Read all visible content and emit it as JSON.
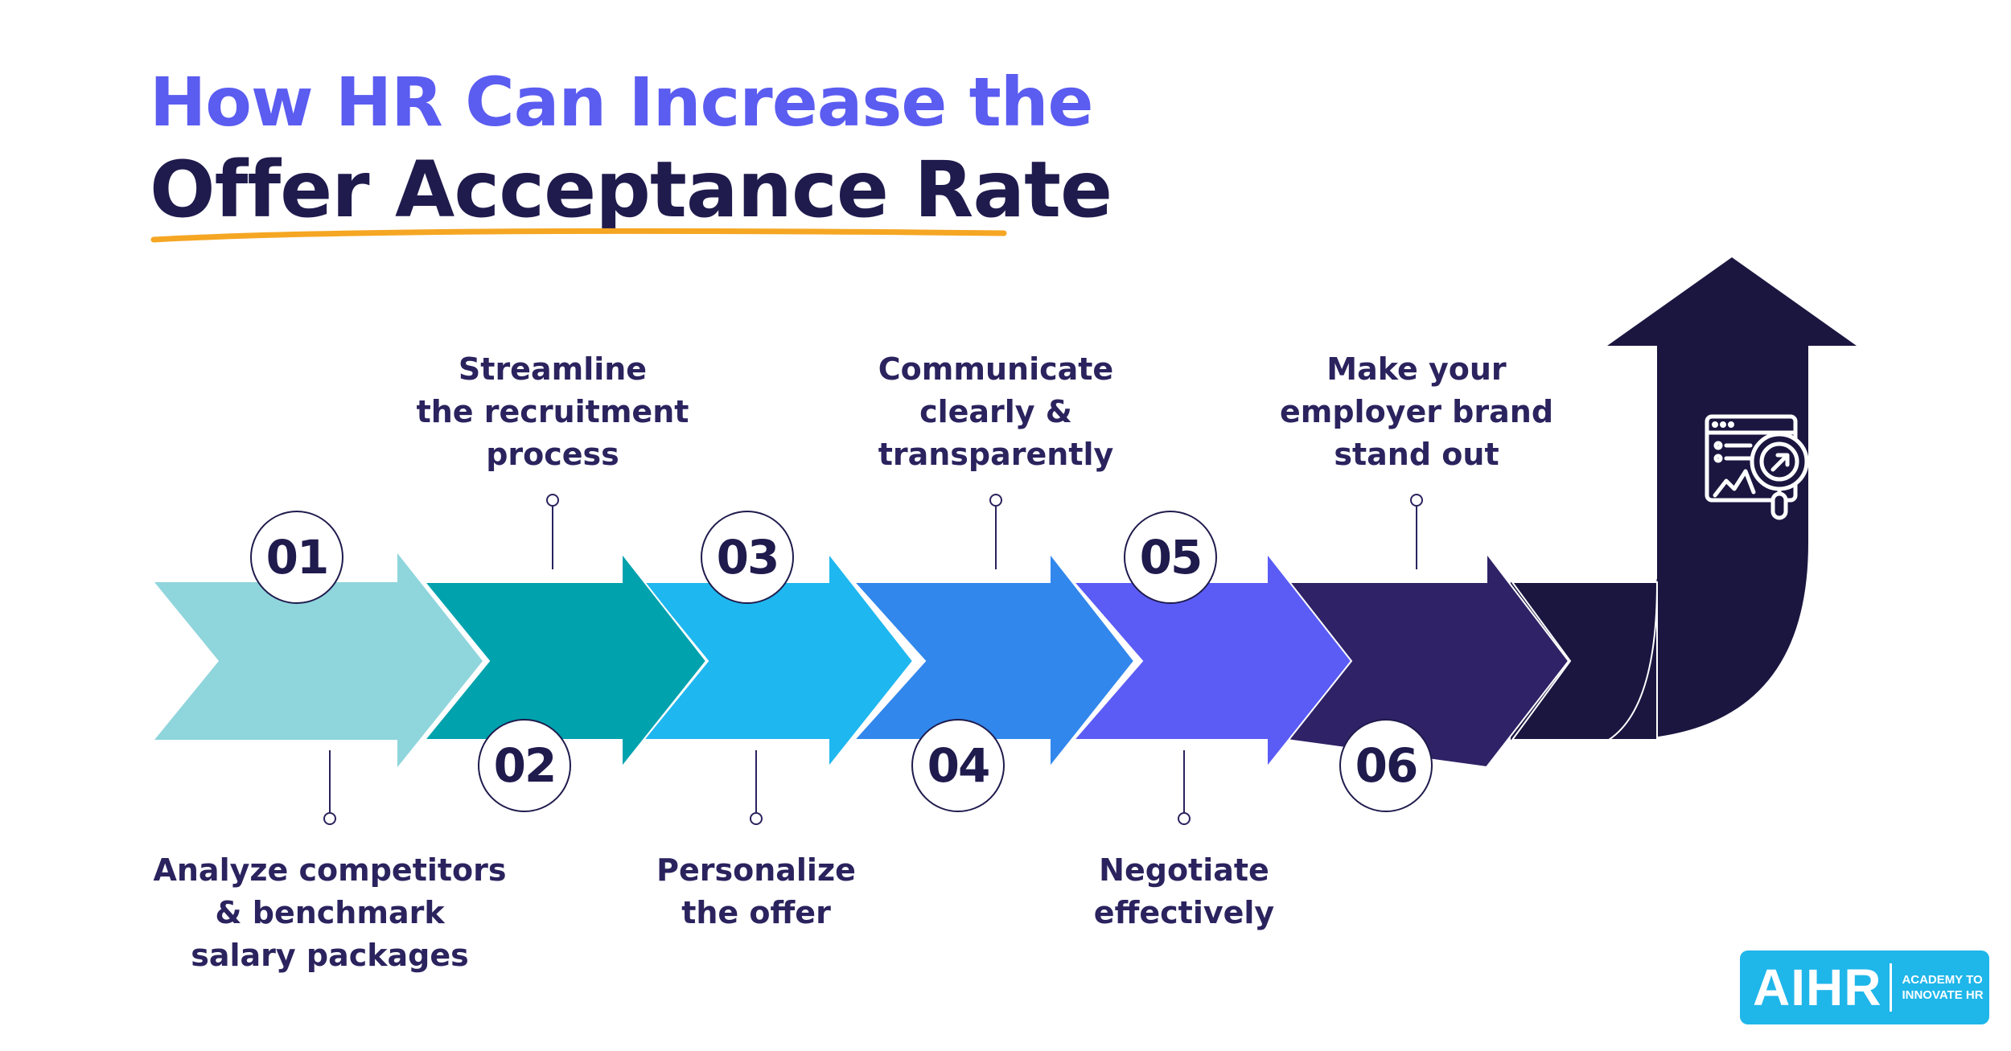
{
  "title": {
    "line1": "How HR Can Increase the",
    "line2": "Offer Acceptance Rate"
  },
  "colors": {
    "title_accent": "#5b5cf0",
    "title_dark": "#1f1b4d",
    "underline": "#f5a623",
    "steps": [
      "#8fd5dc",
      "#00a2ad",
      "#1fb7ef",
      "#3187ec",
      "#5b5cf5",
      "#2f2266"
    ],
    "final_arrow": "#1b1640",
    "logo": "#1fb6ea"
  },
  "steps": [
    {
      "number": "01",
      "label": "Analyze competitors\n& benchmark\nsalary packages"
    },
    {
      "number": "02",
      "label": "Streamline\nthe recruitment\nprocess"
    },
    {
      "number": "03",
      "label": "Personalize\nthe offer"
    },
    {
      "number": "04",
      "label": "Communicate\nclearly &\ntransparently"
    },
    {
      "number": "05",
      "label": "Negotiate\neffectively"
    },
    {
      "number": "06",
      "label": "Make your\nemployer brand\nstand out"
    }
  ],
  "icons": {
    "final": "analytics-magnifier-icon"
  },
  "logo": {
    "word": "AIHR",
    "tagline": "ACADEMY TO\nINNOVATE HR"
  }
}
